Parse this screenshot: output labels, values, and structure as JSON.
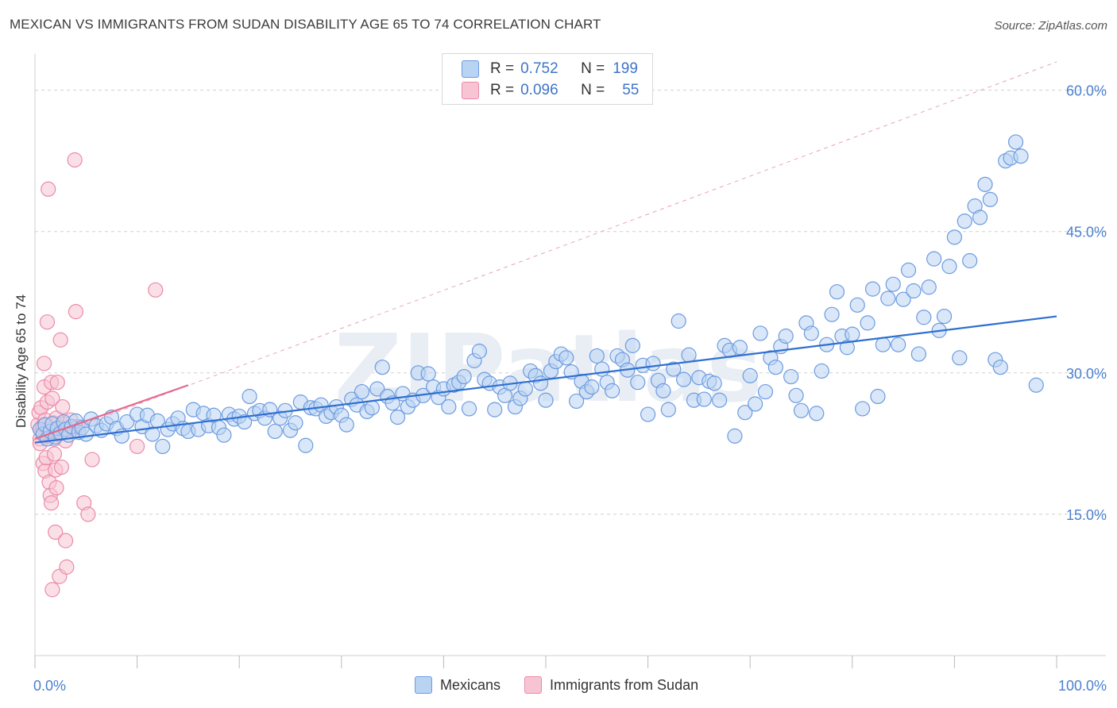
{
  "title": "MEXICAN VS IMMIGRANTS FROM SUDAN DISABILITY AGE 65 TO 74 CORRELATION CHART",
  "source": "Source: ZipAtlas.com",
  "watermark": "ZIPatlas",
  "legend": {
    "rows": [
      {
        "r_label": "R =",
        "r_value": "0.752",
        "n_label": "N =",
        "n_value": "199"
      },
      {
        "r_label": "R =",
        "r_value": "0.096",
        "n_label": "N =",
        "n_value": "55"
      }
    ]
  },
  "colors": {
    "blue_fill": "#b9d3f3",
    "blue_stroke": "#6c9be0",
    "blue_line": "#2f6fd0",
    "pink_fill": "#f7c4d3",
    "pink_stroke": "#ec8aaa",
    "pink_line": "#e4698f",
    "tick_label": "#4a7fcf",
    "grid": "#d0d0d0"
  },
  "chart_data": {
    "type": "scatter",
    "title": "MEXICAN VS IMMIGRANTS FROM SUDAN DISABILITY AGE 65 TO 74 CORRELATION CHART",
    "xlabel": "",
    "ylabel": "Disability Age 65 to 74",
    "xlim": [
      0,
      100
    ],
    "ylim": [
      0,
      63
    ],
    "x_tick_labels": [
      "0.0%",
      "100.0%"
    ],
    "y_ticks": [
      15,
      30,
      45,
      60
    ],
    "y_tick_labels": [
      "15.0%",
      "30.0%",
      "45.0%",
      "60.0%"
    ],
    "grid": true,
    "legend_position": "bottom",
    "series": [
      {
        "name": "Mexicans",
        "color": "#b9d3f3",
        "r": 0.752,
        "n": 199,
        "trend": {
          "x": [
            0,
            100
          ],
          "y": [
            22.6,
            36.0
          ]
        },
        "points": [
          [
            0.5,
            24.0
          ],
          [
            0.8,
            23.5
          ],
          [
            1.0,
            24.5
          ],
          [
            1.2,
            23.0
          ],
          [
            1.5,
            23.8
          ],
          [
            1.7,
            24.6
          ],
          [
            2.0,
            23.2
          ],
          [
            2.2,
            24.1
          ],
          [
            2.5,
            23.6
          ],
          [
            2.8,
            24.8
          ],
          [
            3.0,
            24.0
          ],
          [
            3.3,
            23.4
          ],
          [
            3.6,
            24.3
          ],
          [
            4.0,
            24.9
          ],
          [
            4.3,
            23.7
          ],
          [
            4.6,
            24.2
          ],
          [
            5.0,
            23.5
          ],
          [
            5.5,
            25.1
          ],
          [
            6.0,
            24.4
          ],
          [
            6.5,
            23.9
          ],
          [
            7.0,
            24.6
          ],
          [
            7.5,
            25.3
          ],
          [
            8.0,
            24.1
          ],
          [
            8.5,
            23.3
          ],
          [
            9.0,
            24.8
          ],
          [
            10.0,
            25.6
          ],
          [
            10.5,
            24.3
          ],
          [
            11.0,
            25.5
          ],
          [
            11.5,
            23.5
          ],
          [
            12.0,
            24.9
          ],
          [
            12.5,
            22.2
          ],
          [
            13.0,
            24.0
          ],
          [
            13.5,
            24.6
          ],
          [
            14.0,
            25.2
          ],
          [
            14.5,
            24.1
          ],
          [
            15.0,
            23.8
          ],
          [
            15.5,
            26.1
          ],
          [
            16.0,
            24.0
          ],
          [
            16.5,
            25.7
          ],
          [
            17.0,
            24.4
          ],
          [
            17.5,
            25.5
          ],
          [
            18.0,
            24.2
          ],
          [
            18.5,
            23.4
          ],
          [
            19.0,
            25.6
          ],
          [
            19.5,
            25.1
          ],
          [
            20.0,
            25.4
          ],
          [
            20.5,
            24.8
          ],
          [
            21.0,
            27.5
          ],
          [
            21.5,
            25.7
          ],
          [
            22.0,
            26.0
          ],
          [
            22.5,
            25.2
          ],
          [
            23.0,
            26.1
          ],
          [
            23.5,
            23.8
          ],
          [
            24.0,
            25.2
          ],
          [
            24.5,
            26.0
          ],
          [
            25.0,
            23.9
          ],
          [
            25.5,
            24.7
          ],
          [
            26.0,
            26.9
          ],
          [
            26.5,
            22.3
          ],
          [
            27.0,
            26.3
          ],
          [
            27.5,
            26.2
          ],
          [
            28.0,
            26.6
          ],
          [
            28.5,
            25.4
          ],
          [
            29.0,
            25.8
          ],
          [
            29.5,
            26.4
          ],
          [
            30.0,
            25.5
          ],
          [
            30.5,
            24.5
          ],
          [
            31.0,
            27.2
          ],
          [
            31.5,
            26.6
          ],
          [
            32.0,
            28.0
          ],
          [
            32.5,
            25.9
          ],
          [
            33.0,
            26.3
          ],
          [
            33.5,
            28.3
          ],
          [
            34.0,
            30.6
          ],
          [
            34.5,
            27.5
          ],
          [
            35.0,
            26.8
          ],
          [
            35.5,
            25.3
          ],
          [
            36.0,
            27.8
          ],
          [
            36.5,
            26.4
          ],
          [
            37.0,
            27.1
          ],
          [
            37.5,
            30.0
          ],
          [
            38.0,
            27.6
          ],
          [
            38.5,
            29.9
          ],
          [
            39.0,
            28.5
          ],
          [
            39.5,
            27.4
          ],
          [
            40.0,
            28.3
          ],
          [
            40.5,
            26.4
          ],
          [
            41.0,
            28.7
          ],
          [
            41.5,
            29.0
          ],
          [
            42.0,
            29.6
          ],
          [
            42.5,
            26.2
          ],
          [
            43.0,
            31.3
          ],
          [
            43.5,
            32.3
          ],
          [
            44.0,
            29.3
          ],
          [
            44.5,
            28.9
          ],
          [
            45.0,
            26.1
          ],
          [
            45.5,
            28.5
          ],
          [
            46.0,
            27.6
          ],
          [
            46.5,
            28.9
          ],
          [
            47.0,
            26.4
          ],
          [
            47.5,
            27.3
          ],
          [
            48.0,
            28.3
          ],
          [
            48.5,
            30.2
          ],
          [
            49.0,
            29.7
          ],
          [
            49.5,
            28.9
          ],
          [
            50.0,
            27.1
          ],
          [
            50.5,
            30.2
          ],
          [
            51.0,
            31.2
          ],
          [
            51.5,
            32.0
          ],
          [
            52.0,
            31.6
          ],
          [
            52.5,
            30.1
          ],
          [
            53.0,
            27.0
          ],
          [
            53.5,
            29.1
          ],
          [
            54.0,
            28.0
          ],
          [
            54.5,
            28.5
          ],
          [
            55.0,
            31.8
          ],
          [
            55.5,
            30.4
          ],
          [
            56.0,
            29.0
          ],
          [
            56.5,
            28.1
          ],
          [
            57.0,
            31.8
          ],
          [
            57.5,
            31.4
          ],
          [
            58.0,
            30.3
          ],
          [
            58.5,
            32.9
          ],
          [
            59.0,
            29.0
          ],
          [
            59.5,
            30.8
          ],
          [
            60.0,
            25.6
          ],
          [
            60.5,
            31.0
          ],
          [
            61.0,
            29.2
          ],
          [
            61.5,
            28.1
          ],
          [
            62.0,
            26.1
          ],
          [
            62.5,
            30.4
          ],
          [
            63.0,
            35.5
          ],
          [
            63.5,
            29.3
          ],
          [
            64.0,
            31.9
          ],
          [
            64.5,
            27.1
          ],
          [
            65.0,
            29.5
          ],
          [
            65.5,
            27.2
          ],
          [
            66.0,
            29.1
          ],
          [
            66.5,
            28.9
          ],
          [
            67.0,
            27.1
          ],
          [
            67.5,
            32.9
          ],
          [
            68.0,
            32.4
          ],
          [
            68.5,
            23.3
          ],
          [
            69.0,
            32.7
          ],
          [
            69.5,
            25.8
          ],
          [
            70.0,
            29.7
          ],
          [
            70.5,
            26.7
          ],
          [
            71.0,
            34.2
          ],
          [
            71.5,
            28.0
          ],
          [
            72.0,
            31.6
          ],
          [
            72.5,
            30.6
          ],
          [
            73.0,
            32.8
          ],
          [
            73.5,
            33.9
          ],
          [
            74.0,
            29.6
          ],
          [
            74.5,
            27.6
          ],
          [
            75.0,
            26.0
          ],
          [
            75.5,
            35.3
          ],
          [
            76.0,
            34.2
          ],
          [
            76.5,
            25.7
          ],
          [
            77.0,
            30.2
          ],
          [
            77.5,
            33.0
          ],
          [
            78.0,
            36.2
          ],
          [
            78.5,
            38.6
          ],
          [
            79.0,
            33.9
          ],
          [
            79.5,
            32.7
          ],
          [
            80.0,
            34.1
          ],
          [
            80.5,
            37.2
          ],
          [
            81.0,
            26.2
          ],
          [
            81.5,
            35.3
          ],
          [
            82.0,
            38.9
          ],
          [
            82.5,
            27.5
          ],
          [
            83.0,
            33.0
          ],
          [
            83.5,
            37.9
          ],
          [
            84.0,
            39.4
          ],
          [
            84.5,
            33.0
          ],
          [
            85.0,
            37.8
          ],
          [
            85.5,
            40.9
          ],
          [
            86.0,
            38.7
          ],
          [
            86.5,
            32.0
          ],
          [
            87.0,
            35.9
          ],
          [
            87.5,
            39.1
          ],
          [
            88.0,
            42.1
          ],
          [
            88.5,
            34.5
          ],
          [
            89.0,
            36.0
          ],
          [
            89.5,
            41.3
          ],
          [
            90.0,
            44.4
          ],
          [
            90.5,
            31.6
          ],
          [
            91.0,
            46.1
          ],
          [
            91.5,
            41.9
          ],
          [
            92.0,
            47.7
          ],
          [
            92.5,
            46.5
          ],
          [
            93.0,
            50.0
          ],
          [
            93.5,
            48.4
          ],
          [
            94.0,
            31.4
          ],
          [
            94.5,
            30.6
          ],
          [
            95.0,
            52.5
          ],
          [
            95.5,
            52.8
          ],
          [
            96.0,
            54.5
          ],
          [
            96.5,
            53.0
          ],
          [
            98.0,
            28.7
          ]
        ]
      },
      {
        "name": "Immigrants from Sudan",
        "color": "#f7c4d3",
        "r": 0.096,
        "n": 55,
        "trend": {
          "x": [
            0,
            15
          ],
          "y": [
            23.0,
            28.7
          ]
        },
        "points": [
          [
            0.3,
            24.5
          ],
          [
            0.4,
            25.8
          ],
          [
            0.5,
            23.0
          ],
          [
            0.5,
            22.5
          ],
          [
            0.6,
            26.3
          ],
          [
            0.7,
            23.9
          ],
          [
            0.8,
            24.4
          ],
          [
            0.8,
            20.4
          ],
          [
            0.9,
            28.5
          ],
          [
            0.9,
            31.0
          ],
          [
            1.0,
            25.0
          ],
          [
            1.0,
            19.6
          ],
          [
            1.1,
            23.3
          ],
          [
            1.1,
            21.0
          ],
          [
            1.2,
            26.9
          ],
          [
            1.2,
            35.4
          ],
          [
            1.3,
            49.5
          ],
          [
            1.3,
            24.0
          ],
          [
            1.4,
            18.4
          ],
          [
            1.5,
            23.6
          ],
          [
            1.5,
            17.0
          ],
          [
            1.6,
            29.0
          ],
          [
            1.6,
            16.2
          ],
          [
            1.7,
            27.3
          ],
          [
            1.7,
            7.0
          ],
          [
            1.8,
            24.7
          ],
          [
            1.9,
            23.0
          ],
          [
            1.9,
            21.4
          ],
          [
            2.0,
            19.7
          ],
          [
            2.0,
            13.1
          ],
          [
            2.1,
            25.2
          ],
          [
            2.1,
            17.8
          ],
          [
            2.2,
            29.0
          ],
          [
            2.2,
            23.5
          ],
          [
            2.3,
            23.8
          ],
          [
            2.4,
            8.4
          ],
          [
            2.5,
            33.5
          ],
          [
            2.5,
            24.2
          ],
          [
            2.6,
            20.0
          ],
          [
            2.7,
            26.4
          ],
          [
            2.8,
            24.6
          ],
          [
            3.0,
            12.2
          ],
          [
            3.0,
            22.8
          ],
          [
            3.1,
            9.4
          ],
          [
            3.2,
            23.8
          ],
          [
            3.5,
            25.0
          ],
          [
            3.8,
            24.1
          ],
          [
            3.9,
            52.6
          ],
          [
            4.0,
            36.5
          ],
          [
            4.2,
            24.3
          ],
          [
            4.8,
            16.2
          ],
          [
            5.2,
            15.0
          ],
          [
            5.6,
            20.8
          ],
          [
            10.0,
            22.2
          ],
          [
            11.8,
            38.8
          ]
        ]
      }
    ],
    "reference_line": {
      "style": "dashed",
      "x": [
        0,
        100
      ],
      "y": [
        22.6,
        63.0
      ]
    }
  },
  "bottom_legend": {
    "items": [
      {
        "label": "Mexicans"
      },
      {
        "label": "Immigrants from Sudan"
      }
    ]
  }
}
